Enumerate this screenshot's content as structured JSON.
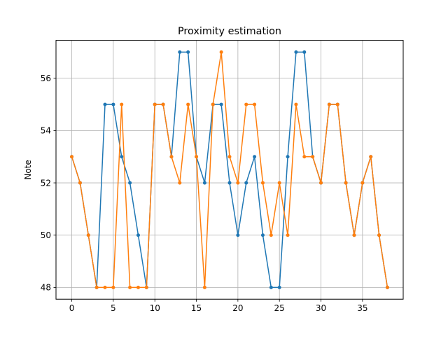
{
  "chart_data": {
    "type": "line",
    "title": "Proximity estimation",
    "xlabel": "",
    "ylabel": "Note",
    "xlim": [
      -1.9,
      39.9
    ],
    "ylim": [
      47.55,
      57.45
    ],
    "xticks": [
      0,
      5,
      10,
      15,
      20,
      25,
      30,
      35
    ],
    "yticks": [
      48,
      50,
      52,
      54,
      56
    ],
    "grid": true,
    "legend": "none",
    "x": [
      0,
      1,
      2,
      3,
      4,
      5,
      6,
      7,
      8,
      9,
      10,
      11,
      12,
      13,
      14,
      15,
      16,
      17,
      18,
      19,
      20,
      21,
      22,
      23,
      24,
      25,
      26,
      27,
      28,
      29,
      30,
      31,
      32,
      33,
      34,
      35,
      36,
      37,
      38
    ],
    "series": [
      {
        "color": "#1f77b4",
        "marker": "dot",
        "values": [
          53,
          52,
          50,
          48,
          55,
          55,
          53,
          52,
          50,
          48,
          55,
          55,
          53,
          57,
          57,
          53,
          52,
          55,
          55,
          52,
          50,
          52,
          53,
          50,
          48,
          48,
          53,
          57,
          57,
          53,
          52,
          55,
          55,
          52,
          50,
          52,
          53,
          50,
          48
        ]
      },
      {
        "color": "#ff7f0e",
        "marker": "dot",
        "values": [
          53,
          52,
          50,
          48,
          48,
          48,
          55,
          48,
          48,
          48,
          55,
          55,
          53,
          52,
          55,
          53,
          48,
          55,
          57,
          53,
          52,
          55,
          55,
          52,
          50,
          52,
          50,
          55,
          53,
          53,
          52,
          55,
          55,
          52,
          50,
          52,
          53,
          50,
          48
        ]
      }
    ],
    "axis_color": "#000000",
    "grid_color": "#b0b0b0"
  }
}
